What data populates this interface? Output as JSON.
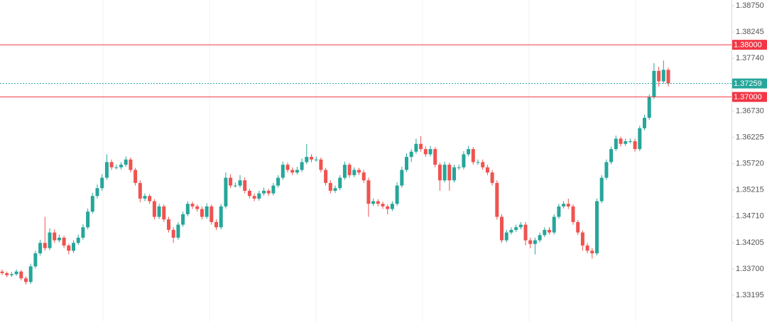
{
  "chart_data": {
    "type": "candlestick",
    "up_color": "#26a69a",
    "down_color": "#ef5350",
    "ylim": [
      1.32693,
      1.3886
    ],
    "yticks": [
      {
        "value": 1.3875,
        "label": "1.38750"
      },
      1.38245,
      {
        "value": 1.3774,
        "label": "1.37740"
      },
      {
        "value": 1.3673,
        "label": "1.36730"
      },
      1.36225,
      {
        "value": 1.3572,
        "label": "1.35720"
      },
      1.35215,
      {
        "value": 1.3471,
        "label": "1.34710"
      },
      1.34205,
      {
        "value": 1.337,
        "label": "1.33700"
      },
      1.33195
    ],
    "price_lines": [
      {
        "value": 1.38,
        "label": "1.38000",
        "color": "#f23645",
        "style": "solid"
      },
      {
        "value": 1.37259,
        "label": "1.37259",
        "color": "#26a69a",
        "style": "dotted"
      },
      {
        "value": 1.37,
        "label": "1.37000",
        "color": "#f23645",
        "style": "solid"
      }
    ],
    "ohlc": [
      [
        1.3365,
        1.3369,
        1.3358,
        1.3362
      ],
      [
        1.3362,
        1.3365,
        1.3354,
        1.3358
      ],
      [
        1.3358,
        1.3364,
        1.3355,
        1.336
      ],
      [
        1.336,
        1.3369,
        1.3357,
        1.3365
      ],
      [
        1.3365,
        1.3368,
        1.3348,
        1.3352
      ],
      [
        1.3352,
        1.3356,
        1.334,
        1.3345
      ],
      [
        1.3345,
        1.338,
        1.3341,
        1.3375
      ],
      [
        1.3375,
        1.3405,
        1.3371,
        1.34
      ],
      [
        1.34,
        1.3426,
        1.3396,
        1.342
      ],
      [
        1.342,
        1.347,
        1.3405,
        1.341
      ],
      [
        1.341,
        1.3448,
        1.3406,
        1.344
      ],
      [
        1.344,
        1.3446,
        1.342,
        1.3425
      ],
      [
        1.3425,
        1.3436,
        1.3421,
        1.343
      ],
      [
        1.343,
        1.3434,
        1.341,
        1.3415
      ],
      [
        1.3415,
        1.3418,
        1.3398,
        1.3405
      ],
      [
        1.3405,
        1.3425,
        1.3401,
        1.342
      ],
      [
        1.342,
        1.3436,
        1.3416,
        1.343
      ],
      [
        1.343,
        1.3456,
        1.3426,
        1.345
      ],
      [
        1.345,
        1.3486,
        1.3446,
        1.348
      ],
      [
        1.348,
        1.3516,
        1.3476,
        1.351
      ],
      [
        1.351,
        1.3532,
        1.3505,
        1.3525
      ],
      [
        1.3525,
        1.3552,
        1.352,
        1.3545
      ],
      [
        1.3545,
        1.359,
        1.3541,
        1.3575
      ],
      [
        1.3575,
        1.358,
        1.356,
        1.3565
      ],
      [
        1.3565,
        1.357,
        1.3561,
        1.3565
      ],
      [
        1.3565,
        1.3575,
        1.3561,
        1.357
      ],
      [
        1.357,
        1.3586,
        1.3566,
        1.358
      ],
      [
        1.358,
        1.3584,
        1.3555,
        1.356
      ],
      [
        1.356,
        1.3564,
        1.353,
        1.3535
      ],
      [
        1.3535,
        1.354,
        1.3498,
        1.3505
      ],
      [
        1.3505,
        1.3515,
        1.35,
        1.351
      ],
      [
        1.351,
        1.3514,
        1.3495,
        1.35
      ],
      [
        1.35,
        1.3504,
        1.3465,
        1.347
      ],
      [
        1.347,
        1.3495,
        1.3466,
        1.349
      ],
      [
        1.349,
        1.3494,
        1.346,
        1.3465
      ],
      [
        1.3465,
        1.347,
        1.344,
        1.3445
      ],
      [
        1.3445,
        1.345,
        1.342,
        1.343
      ],
      [
        1.343,
        1.346,
        1.3426,
        1.3455
      ],
      [
        1.3455,
        1.348,
        1.3451,
        1.3475
      ],
      [
        1.3475,
        1.35,
        1.3471,
        1.3495
      ],
      [
        1.3495,
        1.3499,
        1.3485,
        1.349
      ],
      [
        1.349,
        1.3494,
        1.348,
        1.3485
      ],
      [
        1.3485,
        1.349,
        1.3465,
        1.347
      ],
      [
        1.347,
        1.3496,
        1.3466,
        1.349
      ],
      [
        1.349,
        1.3494,
        1.3455,
        1.346
      ],
      [
        1.346,
        1.3465,
        1.3445,
        1.345
      ],
      [
        1.345,
        1.3495,
        1.3446,
        1.349
      ],
      [
        1.349,
        1.3555,
        1.3486,
        1.3545
      ],
      [
        1.3545,
        1.3552,
        1.3525,
        1.353
      ],
      [
        1.353,
        1.3536,
        1.3526,
        1.353
      ],
      [
        1.353,
        1.355,
        1.3526,
        1.354
      ],
      [
        1.354,
        1.3546,
        1.3515,
        1.352
      ],
      [
        1.352,
        1.3524,
        1.3505,
        1.351
      ],
      [
        1.351,
        1.3515,
        1.35,
        1.3505
      ],
      [
        1.3505,
        1.352,
        1.3501,
        1.3515
      ],
      [
        1.3515,
        1.3526,
        1.3511,
        1.352
      ],
      [
        1.352,
        1.3524,
        1.351,
        1.3515
      ],
      [
        1.3515,
        1.3535,
        1.3511,
        1.353
      ],
      [
        1.353,
        1.355,
        1.3526,
        1.3545
      ],
      [
        1.3545,
        1.3576,
        1.3541,
        1.357
      ],
      [
        1.357,
        1.3574,
        1.3555,
        1.356
      ],
      [
        1.356,
        1.3565,
        1.355,
        1.3555
      ],
      [
        1.3555,
        1.3566,
        1.3551,
        1.356
      ],
      [
        1.356,
        1.3582,
        1.3556,
        1.3575
      ],
      [
        1.3575,
        1.361,
        1.3571,
        1.3585
      ],
      [
        1.3585,
        1.359,
        1.3575,
        1.358
      ],
      [
        1.358,
        1.3586,
        1.3576,
        1.358
      ],
      [
        1.358,
        1.3584,
        1.3555,
        1.356
      ],
      [
        1.356,
        1.3564,
        1.353,
        1.3535
      ],
      [
        1.3535,
        1.354,
        1.3515,
        1.352
      ],
      [
        1.352,
        1.353,
        1.3516,
        1.3525
      ],
      [
        1.3525,
        1.355,
        1.3521,
        1.3545
      ],
      [
        1.3545,
        1.3576,
        1.3541,
        1.357
      ],
      [
        1.357,
        1.3574,
        1.3545,
        1.355
      ],
      [
        1.355,
        1.3565,
        1.3546,
        1.356
      ],
      [
        1.356,
        1.3564,
        1.355,
        1.3555
      ],
      [
        1.3555,
        1.356,
        1.3535,
        1.354
      ],
      [
        1.354,
        1.3545,
        1.347,
        1.3495
      ],
      [
        1.3495,
        1.3505,
        1.3491,
        1.35
      ],
      [
        1.35,
        1.3504,
        1.349,
        1.3495
      ],
      [
        1.3495,
        1.3499,
        1.3485,
        1.349
      ],
      [
        1.349,
        1.3494,
        1.3475,
        1.3485
      ],
      [
        1.3485,
        1.35,
        1.3481,
        1.3495
      ],
      [
        1.3495,
        1.3536,
        1.3491,
        1.353
      ],
      [
        1.353,
        1.3566,
        1.3526,
        1.356
      ],
      [
        1.356,
        1.3592,
        1.3556,
        1.3585
      ],
      [
        1.3585,
        1.36,
        1.3575,
        1.3595
      ],
      [
        1.3595,
        1.362,
        1.3591,
        1.361
      ],
      [
        1.361,
        1.3625,
        1.3595,
        1.36
      ],
      [
        1.36,
        1.3605,
        1.3585,
        1.359
      ],
      [
        1.359,
        1.3606,
        1.3586,
        1.36
      ],
      [
        1.36,
        1.3604,
        1.3565,
        1.357
      ],
      [
        1.357,
        1.3574,
        1.352,
        1.354
      ],
      [
        1.354,
        1.3576,
        1.3536,
        1.357
      ],
      [
        1.357,
        1.3574,
        1.352,
        1.354
      ],
      [
        1.354,
        1.357,
        1.3536,
        1.3565
      ],
      [
        1.3565,
        1.357,
        1.356,
        1.3565
      ],
      [
        1.3565,
        1.3596,
        1.3561,
        1.359
      ],
      [
        1.359,
        1.3606,
        1.3586,
        1.36
      ],
      [
        1.36,
        1.3604,
        1.357,
        1.3575
      ],
      [
        1.3575,
        1.358,
        1.357,
        1.3575
      ],
      [
        1.3575,
        1.358,
        1.356,
        1.3565
      ],
      [
        1.3565,
        1.357,
        1.355,
        1.3555
      ],
      [
        1.3555,
        1.356,
        1.353,
        1.3535
      ],
      [
        1.3535,
        1.354,
        1.3465,
        1.347
      ],
      [
        1.347,
        1.3475,
        1.342,
        1.3425
      ],
      [
        1.3425,
        1.3445,
        1.3421,
        1.344
      ],
      [
        1.344,
        1.345,
        1.3436,
        1.3445
      ],
      [
        1.3445,
        1.3455,
        1.3441,
        1.345
      ],
      [
        1.345,
        1.346,
        1.3446,
        1.3455
      ],
      [
        1.3455,
        1.346,
        1.3415,
        1.3425
      ],
      [
        1.3425,
        1.343,
        1.341,
        1.3418
      ],
      [
        1.3418,
        1.343,
        1.3398,
        1.3425
      ],
      [
        1.3425,
        1.344,
        1.3421,
        1.3435
      ],
      [
        1.3435,
        1.345,
        1.3431,
        1.3445
      ],
      [
        1.3445,
        1.345,
        1.3436,
        1.344
      ],
      [
        1.344,
        1.3475,
        1.3436,
        1.347
      ],
      [
        1.347,
        1.3495,
        1.3466,
        1.349
      ],
      [
        1.349,
        1.35,
        1.3486,
        1.3495
      ],
      [
        1.3495,
        1.3505,
        1.3485,
        1.349
      ],
      [
        1.349,
        1.3494,
        1.3455,
        1.346
      ],
      [
        1.346,
        1.3464,
        1.3435,
        1.344
      ],
      [
        1.344,
        1.3444,
        1.3405,
        1.3415
      ],
      [
        1.3415,
        1.342,
        1.34,
        1.3405
      ],
      [
        1.3405,
        1.341,
        1.339,
        1.34
      ],
      [
        1.34,
        1.3505,
        1.3396,
        1.35
      ],
      [
        1.35,
        1.355,
        1.3496,
        1.3545
      ],
      [
        1.3545,
        1.358,
        1.3541,
        1.3575
      ],
      [
        1.3575,
        1.3605,
        1.3571,
        1.36
      ],
      [
        1.36,
        1.3626,
        1.3596,
        1.362
      ],
      [
        1.362,
        1.3624,
        1.3605,
        1.361
      ],
      [
        1.361,
        1.362,
        1.3606,
        1.3615
      ],
      [
        1.3615,
        1.362,
        1.3611,
        1.3615
      ],
      [
        1.3615,
        1.362,
        1.3595,
        1.36
      ],
      [
        1.36,
        1.3645,
        1.3596,
        1.364
      ],
      [
        1.364,
        1.3666,
        1.3636,
        1.366
      ],
      [
        1.366,
        1.3705,
        1.3656,
        1.37
      ],
      [
        1.37,
        1.3765,
        1.3696,
        1.375
      ],
      [
        1.375,
        1.3758,
        1.372,
        1.373
      ],
      [
        1.373,
        1.377,
        1.3726,
        1.3752
      ],
      [
        1.3752,
        1.3756,
        1.372,
        1.3726
      ]
    ]
  }
}
